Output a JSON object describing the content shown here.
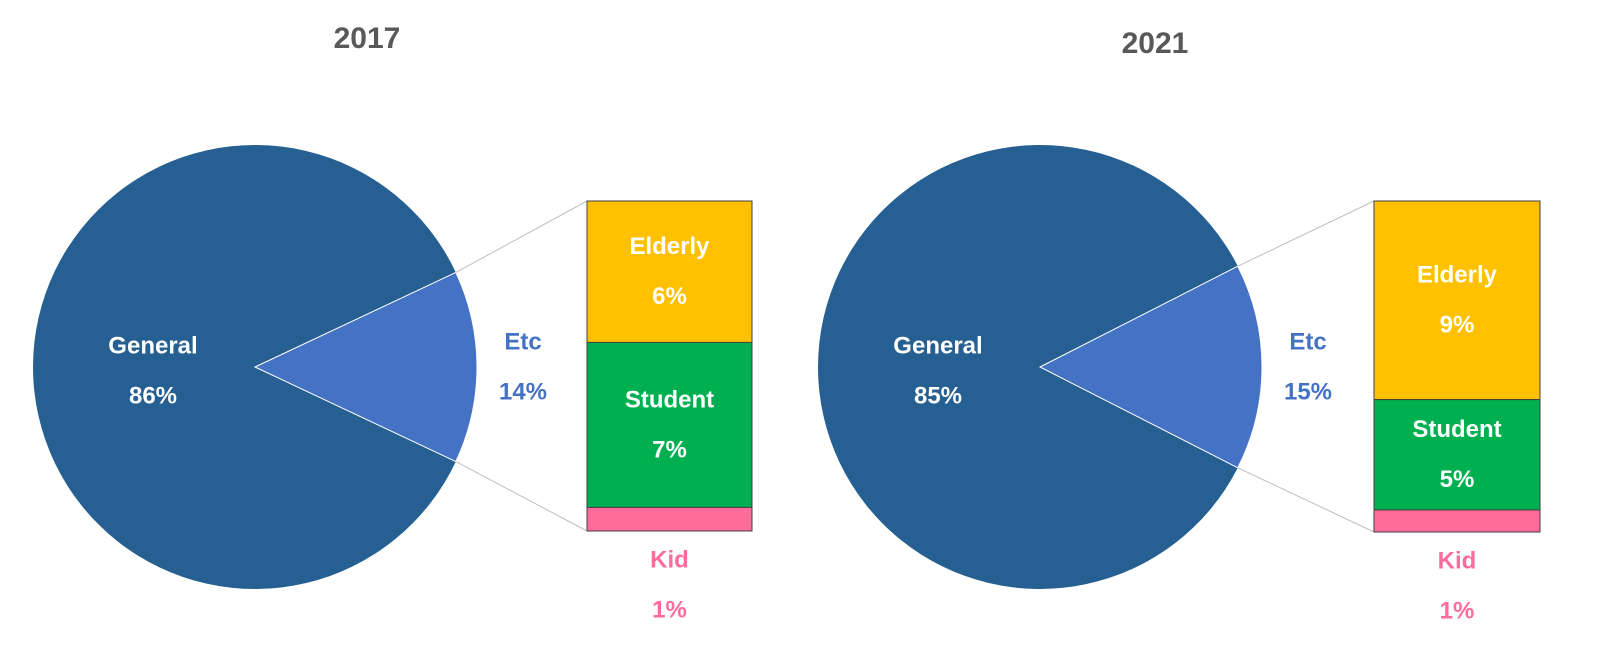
{
  "chart_data": [
    {
      "type": "barofpie",
      "title": "2017",
      "categories": [
        "General",
        "Etc"
      ],
      "values": [
        86,
        14
      ],
      "value_labels": [
        "86%",
        "14%"
      ],
      "colors": [
        "#265f91",
        "#4472c4"
      ],
      "breakdown": {
        "categories": [
          "Elderly",
          "Student",
          "Kid"
        ],
        "values": [
          6,
          7,
          1
        ],
        "value_labels": [
          "6%",
          "7%",
          "1%"
        ],
        "colors": [
          "#ffc000",
          "#00b050",
          "#ff6b9a"
        ]
      }
    },
    {
      "type": "barofpie",
      "title": "2021",
      "categories": [
        "General",
        "Etc"
      ],
      "values": [
        85,
        15
      ],
      "value_labels": [
        "85%",
        "15%"
      ],
      "colors": [
        "#265f91",
        "#4472c4"
      ],
      "breakdown": {
        "categories": [
          "Elderly",
          "Student",
          "Kid"
        ],
        "values": [
          9,
          5,
          1
        ],
        "value_labels": [
          "9%",
          "5%",
          "1%"
        ],
        "colors": [
          "#ffc000",
          "#00b050",
          "#ff6b9a"
        ]
      }
    }
  ]
}
